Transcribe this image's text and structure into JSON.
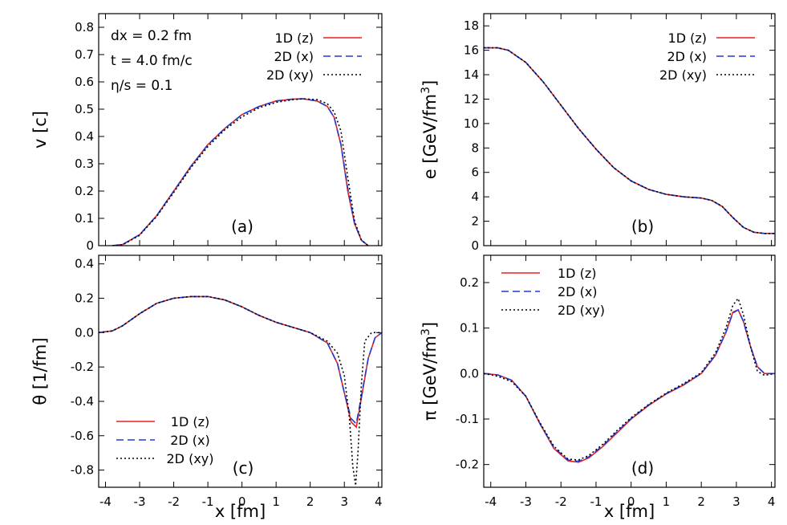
{
  "chart_data": [
    {
      "panel": "(a)",
      "type": "line",
      "xlabel": "x [fm]",
      "ylabel": "v [c]",
      "xlim": [
        -4.2,
        4.1
      ],
      "ylim": [
        0,
        0.85
      ],
      "xticks": [
        "-4",
        "-3",
        "-2",
        "-1",
        "0",
        "1",
        "2",
        "3",
        "4"
      ],
      "yticks": [
        "0",
        "0.1",
        "0.2",
        "0.3",
        "0.4",
        "0.5",
        "0.6",
        "0.7",
        "0.8"
      ],
      "annotations": [
        "dx = 0.2 fm",
        "t = 4.0 fm/c",
        "η/s = 0.1"
      ],
      "legend_position": "top-right",
      "series": [
        {
          "name": "1D (z)",
          "color": "#e8201e",
          "dash": "solid",
          "x": [
            -3.8,
            -3.5,
            -3.0,
            -2.5,
            -2.0,
            -1.5,
            -1.0,
            -0.5,
            0.0,
            0.5,
            1.0,
            1.5,
            1.8,
            2.2,
            2.5,
            2.7,
            2.9,
            3.1,
            3.3,
            3.5,
            3.7
          ],
          "y": [
            0.0,
            0.004,
            0.04,
            0.11,
            0.2,
            0.29,
            0.37,
            0.43,
            0.48,
            0.51,
            0.53,
            0.537,
            0.538,
            0.53,
            0.51,
            0.47,
            0.37,
            0.2,
            0.08,
            0.02,
            0.0
          ]
        },
        {
          "name": "2D (x)",
          "color": "#1f3bd8",
          "dash": "dashed",
          "x": [
            -3.8,
            -3.5,
            -3.0,
            -2.5,
            -2.0,
            -1.5,
            -1.0,
            -0.5,
            0.0,
            0.5,
            1.0,
            1.5,
            1.8,
            2.2,
            2.5,
            2.7,
            2.9,
            3.1,
            3.3,
            3.5,
            3.7
          ],
          "y": [
            0.0,
            0.004,
            0.04,
            0.11,
            0.2,
            0.29,
            0.37,
            0.43,
            0.48,
            0.51,
            0.53,
            0.537,
            0.538,
            0.53,
            0.51,
            0.47,
            0.37,
            0.21,
            0.08,
            0.02,
            0.0
          ]
        },
        {
          "name": "2D (xy)",
          "color": "#000000",
          "dash": "dotted",
          "x": [
            -3.8,
            -3.5,
            -3.0,
            -2.5,
            -2.0,
            -1.5,
            -1.0,
            -0.5,
            0.0,
            0.5,
            1.0,
            1.5,
            1.8,
            2.2,
            2.5,
            2.7,
            2.9,
            3.1,
            3.3,
            3.5,
            3.7
          ],
          "y": [
            0.0,
            0.003,
            0.038,
            0.107,
            0.195,
            0.285,
            0.363,
            0.425,
            0.472,
            0.505,
            0.525,
            0.535,
            0.538,
            0.535,
            0.52,
            0.49,
            0.42,
            0.25,
            0.09,
            0.02,
            0.0
          ]
        }
      ]
    },
    {
      "panel": "(b)",
      "type": "line",
      "xlabel": "x [fm]",
      "ylabel": "e [GeV/fm^3]",
      "xlim": [
        -4.2,
        4.1
      ],
      "ylim": [
        0,
        19
      ],
      "xticks": [
        "-4",
        "-3",
        "-2",
        "-1",
        "0",
        "1",
        "2",
        "3",
        "4"
      ],
      "yticks": [
        "0",
        "2",
        "4",
        "6",
        "8",
        "10",
        "12",
        "14",
        "16",
        "18"
      ],
      "legend_position": "top-right",
      "series": [
        {
          "name": "1D (z)",
          "color": "#e8201e",
          "dash": "solid",
          "x": [
            -4.2,
            -3.8,
            -3.5,
            -3.0,
            -2.5,
            -2.0,
            -1.5,
            -1.0,
            -0.5,
            0.0,
            0.5,
            1.0,
            1.5,
            2.0,
            2.3,
            2.6,
            2.9,
            3.2,
            3.5,
            3.8,
            4.1
          ],
          "y": [
            16.2,
            16.2,
            16.0,
            15.0,
            13.4,
            11.5,
            9.6,
            7.9,
            6.4,
            5.3,
            4.6,
            4.2,
            4.0,
            3.9,
            3.7,
            3.2,
            2.3,
            1.5,
            1.1,
            1.0,
            1.0
          ]
        },
        {
          "name": "2D (x)",
          "color": "#1f3bd8",
          "dash": "dashed",
          "x": [
            -4.2,
            -3.8,
            -3.5,
            -3.0,
            -2.5,
            -2.0,
            -1.5,
            -1.0,
            -0.5,
            0.0,
            0.5,
            1.0,
            1.5,
            2.0,
            2.3,
            2.6,
            2.9,
            3.2,
            3.5,
            3.8,
            4.1
          ],
          "y": [
            16.2,
            16.2,
            16.0,
            15.0,
            13.4,
            11.5,
            9.6,
            7.9,
            6.4,
            5.3,
            4.6,
            4.2,
            4.0,
            3.9,
            3.7,
            3.2,
            2.3,
            1.5,
            1.1,
            1.0,
            1.0
          ]
        },
        {
          "name": "2D (xy)",
          "color": "#000000",
          "dash": "dotted",
          "x": [
            -4.2,
            -3.8,
            -3.5,
            -3.0,
            -2.5,
            -2.0,
            -1.5,
            -1.0,
            -0.5,
            0.0,
            0.5,
            1.0,
            1.5,
            2.0,
            2.3,
            2.6,
            2.9,
            3.2,
            3.5,
            3.8,
            4.1
          ],
          "y": [
            16.2,
            16.2,
            16.0,
            15.0,
            13.4,
            11.5,
            9.6,
            7.9,
            6.4,
            5.3,
            4.6,
            4.2,
            4.0,
            3.9,
            3.7,
            3.2,
            2.3,
            1.5,
            1.1,
            1.0,
            1.0
          ]
        }
      ]
    },
    {
      "panel": "(c)",
      "type": "line",
      "xlabel": "x [fm]",
      "ylabel": "θ [1/fm]",
      "xlim": [
        -4.2,
        4.1
      ],
      "ylim": [
        -0.9,
        0.45
      ],
      "xticks": [
        "-4",
        "-3",
        "-2",
        "-1",
        "0",
        "1",
        "2",
        "3",
        "4"
      ],
      "yticks": [
        "-0.8",
        "-0.6",
        "-0.4",
        "-0.2",
        "0.0",
        "0.2",
        "0.4"
      ],
      "legend_position": "bottom-left",
      "series": [
        {
          "name": "1D (z)",
          "color": "#e8201e",
          "dash": "solid",
          "x": [
            -4.2,
            -3.8,
            -3.5,
            -3.0,
            -2.5,
            -2.0,
            -1.5,
            -1.0,
            -0.5,
            0.0,
            0.5,
            1.0,
            1.5,
            2.0,
            2.5,
            2.8,
            3.0,
            3.2,
            3.35,
            3.5,
            3.7,
            3.9,
            4.1
          ],
          "y": [
            0.0,
            0.01,
            0.04,
            0.11,
            0.17,
            0.2,
            0.21,
            0.21,
            0.19,
            0.15,
            0.1,
            0.06,
            0.03,
            0.0,
            -0.06,
            -0.18,
            -0.35,
            -0.52,
            -0.55,
            -0.38,
            -0.15,
            -0.03,
            0.0
          ]
        },
        {
          "name": "2D (x)",
          "color": "#1f3bd8",
          "dash": "dashed",
          "x": [
            -4.2,
            -3.8,
            -3.5,
            -3.0,
            -2.5,
            -2.0,
            -1.5,
            -1.0,
            -0.5,
            0.0,
            0.5,
            1.0,
            1.5,
            2.0,
            2.5,
            2.8,
            3.0,
            3.2,
            3.35,
            3.5,
            3.7,
            3.9,
            4.1
          ],
          "y": [
            0.0,
            0.01,
            0.04,
            0.11,
            0.17,
            0.2,
            0.21,
            0.21,
            0.19,
            0.15,
            0.1,
            0.06,
            0.03,
            0.0,
            -0.06,
            -0.18,
            -0.35,
            -0.5,
            -0.53,
            -0.37,
            -0.15,
            -0.03,
            0.0
          ]
        },
        {
          "name": "2D (xy)",
          "color": "#000000",
          "dash": "dotted",
          "x": [
            -4.2,
            -3.8,
            -3.5,
            -3.0,
            -2.5,
            -2.0,
            -1.5,
            -1.0,
            -0.5,
            0.0,
            0.5,
            1.0,
            1.5,
            2.0,
            2.5,
            2.8,
            3.0,
            3.15,
            3.25,
            3.33,
            3.4,
            3.5,
            3.6,
            3.8,
            4.1
          ],
          "y": [
            0.0,
            0.01,
            0.04,
            0.11,
            0.17,
            0.2,
            0.21,
            0.21,
            0.19,
            0.15,
            0.1,
            0.06,
            0.03,
            0.0,
            -0.05,
            -0.12,
            -0.25,
            -0.5,
            -0.78,
            -0.89,
            -0.7,
            -0.3,
            -0.05,
            0.0,
            0.0
          ]
        }
      ]
    },
    {
      "panel": "(d)",
      "type": "line",
      "xlabel": "x [fm]",
      "ylabel": "π [GeV/fm^3]",
      "xlim": [
        -4.2,
        4.1
      ],
      "ylim": [
        -0.25,
        0.26
      ],
      "xticks": [
        "-4",
        "-3",
        "-2",
        "-1",
        "0",
        "1",
        "2",
        "3",
        "4"
      ],
      "yticks": [
        "-0.2",
        "-0.1",
        "0.0",
        "0.1",
        "0.2"
      ],
      "legend_position": "top-left",
      "series": [
        {
          "name": "1D (z)",
          "color": "#e8201e",
          "dash": "solid",
          "x": [
            -4.2,
            -3.8,
            -3.4,
            -3.0,
            -2.6,
            -2.2,
            -1.8,
            -1.5,
            -1.2,
            -0.8,
            -0.4,
            0.0,
            0.5,
            1.0,
            1.5,
            2.0,
            2.4,
            2.7,
            2.9,
            3.05,
            3.2,
            3.4,
            3.6,
            3.8,
            4.1
          ],
          "y": [
            0.0,
            -0.003,
            -0.015,
            -0.05,
            -0.11,
            -0.165,
            -0.192,
            -0.195,
            -0.185,
            -0.16,
            -0.13,
            -0.1,
            -0.07,
            -0.045,
            -0.025,
            0.0,
            0.04,
            0.09,
            0.135,
            0.14,
            0.115,
            0.06,
            0.015,
            0.0,
            0.0
          ]
        },
        {
          "name": "2D (x)",
          "color": "#1f3bd8",
          "dash": "dashed",
          "x": [
            -4.2,
            -3.8,
            -3.4,
            -3.0,
            -2.6,
            -2.2,
            -1.8,
            -1.5,
            -1.2,
            -0.8,
            -0.4,
            0.0,
            0.5,
            1.0,
            1.5,
            2.0,
            2.4,
            2.7,
            2.9,
            3.05,
            3.2,
            3.4,
            3.6,
            3.8,
            4.1
          ],
          "y": [
            0.0,
            -0.003,
            -0.015,
            -0.05,
            -0.11,
            -0.163,
            -0.19,
            -0.193,
            -0.183,
            -0.158,
            -0.128,
            -0.099,
            -0.069,
            -0.044,
            -0.024,
            0.0,
            0.04,
            0.09,
            0.133,
            0.14,
            0.115,
            0.06,
            0.015,
            0.0,
            0.0
          ]
        },
        {
          "name": "2D (xy)",
          "color": "#000000",
          "dash": "dotted",
          "x": [
            -4.2,
            -3.8,
            -3.4,
            -3.0,
            -2.6,
            -2.2,
            -1.8,
            -1.5,
            -1.2,
            -0.8,
            -0.4,
            0.0,
            0.5,
            1.0,
            1.5,
            2.0,
            2.4,
            2.7,
            2.9,
            3.05,
            3.2,
            3.4,
            3.6,
            3.8,
            4.1
          ],
          "y": [
            0.0,
            -0.006,
            -0.018,
            -0.05,
            -0.108,
            -0.16,
            -0.188,
            -0.19,
            -0.18,
            -0.155,
            -0.125,
            -0.097,
            -0.068,
            -0.043,
            -0.022,
            0.002,
            0.045,
            0.1,
            0.15,
            0.165,
            0.13,
            0.06,
            0.005,
            -0.004,
            0.0
          ]
        }
      ]
    }
  ]
}
